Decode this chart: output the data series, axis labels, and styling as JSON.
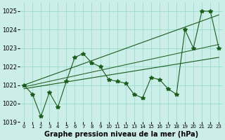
{
  "x": [
    0,
    1,
    2,
    3,
    4,
    5,
    6,
    7,
    8,
    9,
    10,
    11,
    12,
    13,
    14,
    15,
    16,
    17,
    18,
    19,
    20,
    21,
    22,
    23
  ],
  "y_main": [
    1021.0,
    1020.5,
    1019.3,
    1020.6,
    1019.8,
    1021.2,
    1022.5,
    1022.7,
    1022.2,
    1022.0,
    1021.3,
    1021.2,
    1021.1,
    1020.5,
    1020.3,
    1021.4,
    1021.3,
    1020.8,
    1020.5,
    1024.0,
    1023.0,
    1025.0,
    1025.0,
    1023.0
  ],
  "trend_x0": 0,
  "trend_x1": 23,
  "trend_low_y0": 1020.8,
  "trend_low_y1": 1022.5,
  "trend_high_y0": 1021.0,
  "trend_high_y1": 1024.8,
  "trend_mid_y0": 1020.9,
  "trend_mid_y1": 1023.2,
  "ylim": [
    1019.0,
    1025.5
  ],
  "xlim": [
    -0.5,
    23.5
  ],
  "yticks": [
    1019,
    1020,
    1021,
    1022,
    1023,
    1024,
    1025
  ],
  "xticks": [
    0,
    1,
    2,
    3,
    4,
    5,
    6,
    7,
    8,
    9,
    10,
    11,
    12,
    13,
    14,
    15,
    16,
    17,
    18,
    19,
    20,
    21,
    22,
    23
  ],
  "xlabel": "Graphe pression niveau de la mer (hPa)",
  "bg_color": "#cceee8",
  "grid_color": "#99ddcc",
  "line_color": "#1a5c1a",
  "marker": "*",
  "markersize": 4,
  "linewidth": 0.8
}
